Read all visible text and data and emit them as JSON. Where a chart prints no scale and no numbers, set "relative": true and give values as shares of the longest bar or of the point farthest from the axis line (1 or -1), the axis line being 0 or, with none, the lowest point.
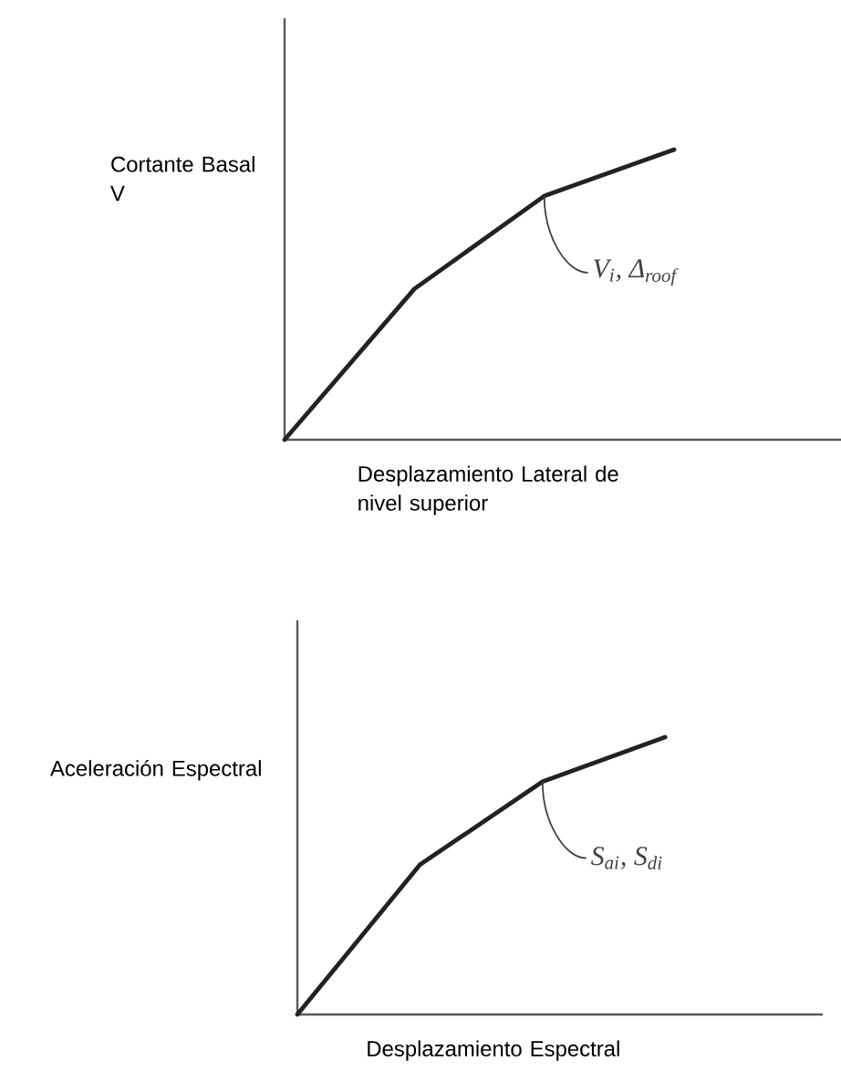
{
  "chart_data": [
    {
      "type": "line",
      "relative": true,
      "ylabel": "Cortante Basal V",
      "xlabel": "Desplazamiento Lateral de nivel superior",
      "categories": [
        null,
        null,
        null,
        null
      ],
      "values": [
        0,
        0.52,
        0.84,
        1
      ],
      "color": "#222222",
      "tick_labels": false,
      "marker": "none",
      "line_style": "solid",
      "annotations": [
        "V$_{i}$, Δ$_{roof}$"
      ]
    },
    {
      "type": "line",
      "relative": true,
      "ylabel": "Aceleración Espectral",
      "xlabel": "Desplazamiento Espectral",
      "categories": [
        null,
        null,
        null,
        null
      ],
      "values": [
        0,
        0.54,
        0.84,
        1
      ],
      "color": "#222222",
      "tick_labels": false,
      "marker": "none",
      "line_style": "solid",
      "annotations": [
        "S$_{ai}$, S$_{di}$"
      ]
    }
  ]
}
